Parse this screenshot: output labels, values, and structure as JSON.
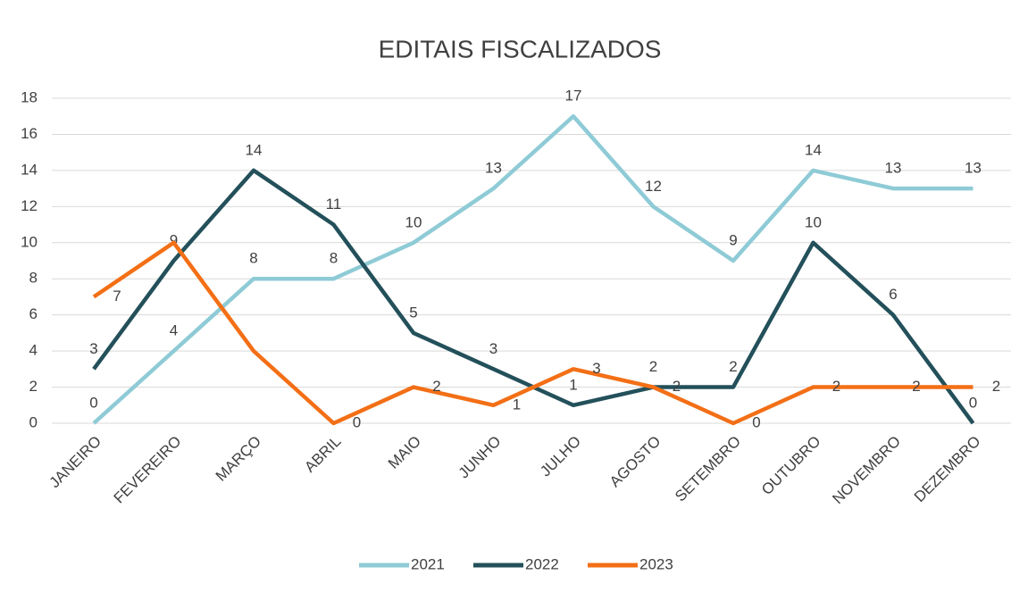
{
  "chart_data": {
    "type": "line",
    "title": "EDITAIS FISCALIZADOS",
    "categories": [
      "JANEIRO",
      "FEVEREIRO",
      "MARÇO",
      "ABRIL",
      "MAIO",
      "JUNHO",
      "JULHO",
      "AGOSTO",
      "SETEMBRO",
      "OUTUBRO",
      "NOVEMBRO",
      "DEZEMBRO"
    ],
    "series": [
      {
        "name": "2021",
        "color": "#8ecbd6",
        "values": [
          0,
          4,
          8,
          8,
          10,
          13,
          17,
          12,
          9,
          14,
          13,
          13
        ]
      },
      {
        "name": "2022",
        "color": "#23505a",
        "values": [
          3,
          9,
          14,
          11,
          5,
          3,
          1,
          2,
          2,
          10,
          6,
          0
        ]
      },
      {
        "name": "2023",
        "color": "#f36f16",
        "values": [
          7,
          10,
          4,
          0,
          2,
          1,
          3,
          2,
          0,
          2,
          2,
          2
        ],
        "value_labels": [
          "7",
          null,
          null,
          "0",
          "2",
          "1",
          "3",
          "2",
          "0",
          "2",
          "2",
          "2"
        ]
      }
    ],
    "ylim": [
      0,
      18
    ],
    "yticks": [
      0,
      2,
      4,
      6,
      8,
      10,
      12,
      14,
      16,
      18
    ],
    "grid": true,
    "legend": "bottom"
  }
}
